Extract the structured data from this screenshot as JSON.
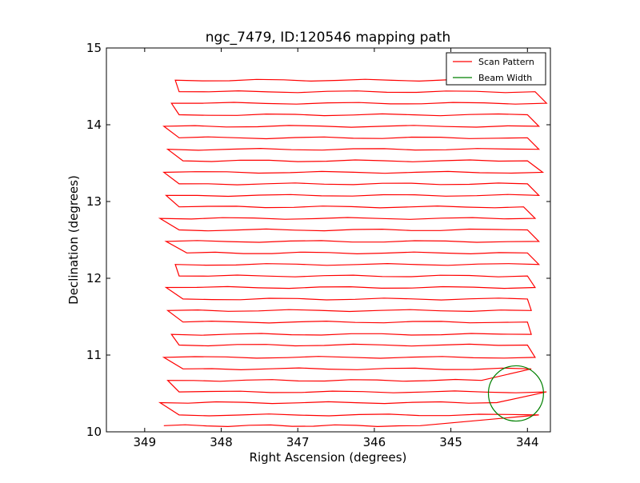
{
  "chart_data": {
    "type": "line",
    "title": "ngc_7479, ID:120546 mapping path",
    "xlabel": "Right Ascension (degrees)",
    "ylabel": "Declination (degrees)",
    "xlim": [
      349.5,
      343.7
    ],
    "ylim": [
      10,
      15
    ],
    "x_inverted": true,
    "xticks": [
      349,
      348,
      347,
      346,
      345,
      344
    ],
    "yticks": [
      10,
      11,
      12,
      13,
      14,
      15
    ],
    "xtick_labels": [
      "349",
      "348",
      "347",
      "346",
      "345",
      "344"
    ],
    "ytick_labels": [
      "10",
      "11",
      "12",
      "13",
      "14",
      "15"
    ],
    "grid": false,
    "legend_position": "top-right",
    "legend": [
      {
        "label": "Scan Pattern",
        "color": "#ff0000"
      },
      {
        "label": "Beam Width",
        "color": "#008000"
      }
    ],
    "series": [
      {
        "name": "Scan Pattern",
        "color": "#ff0000",
        "scan_rows": [
          {
            "dec": 10.08,
            "x_start": 348.75,
            "x_end": 345.4
          },
          {
            "dec": 10.22,
            "x_start": 348.55,
            "x_end": 343.85
          },
          {
            "dec": 10.38,
            "x_start": 348.8,
            "x_end": 344.4
          },
          {
            "dec": 10.52,
            "x_start": 348.55,
            "x_end": 343.75
          },
          {
            "dec": 10.67,
            "x_start": 348.7,
            "x_end": 344.6
          },
          {
            "dec": 10.82,
            "x_start": 348.5,
            "x_end": 343.95
          },
          {
            "dec": 10.97,
            "x_start": 348.75,
            "x_end": 343.9
          },
          {
            "dec": 11.13,
            "x_start": 348.55,
            "x_end": 344.0
          },
          {
            "dec": 11.27,
            "x_start": 348.65,
            "x_end": 343.95
          },
          {
            "dec": 11.43,
            "x_start": 348.5,
            "x_end": 344.0
          },
          {
            "dec": 11.58,
            "x_start": 348.7,
            "x_end": 343.95
          },
          {
            "dec": 11.73,
            "x_start": 348.5,
            "x_end": 344.0
          },
          {
            "dec": 11.88,
            "x_start": 348.72,
            "x_end": 343.9
          },
          {
            "dec": 12.03,
            "x_start": 348.55,
            "x_end": 344.0
          },
          {
            "dec": 12.18,
            "x_start": 348.6,
            "x_end": 343.85
          },
          {
            "dec": 12.33,
            "x_start": 348.45,
            "x_end": 344.0
          },
          {
            "dec": 12.48,
            "x_start": 348.72,
            "x_end": 343.85
          },
          {
            "dec": 12.63,
            "x_start": 348.55,
            "x_end": 344.0
          },
          {
            "dec": 12.78,
            "x_start": 348.8,
            "x_end": 343.9
          },
          {
            "dec": 12.93,
            "x_start": 348.55,
            "x_end": 344.05
          },
          {
            "dec": 13.08,
            "x_start": 348.72,
            "x_end": 343.85
          },
          {
            "dec": 13.23,
            "x_start": 348.55,
            "x_end": 344.0
          },
          {
            "dec": 13.38,
            "x_start": 348.75,
            "x_end": 343.8
          },
          {
            "dec": 13.53,
            "x_start": 348.5,
            "x_end": 344.0
          },
          {
            "dec": 13.68,
            "x_start": 348.7,
            "x_end": 343.85
          },
          {
            "dec": 13.83,
            "x_start": 348.55,
            "x_end": 344.0
          },
          {
            "dec": 13.98,
            "x_start": 348.75,
            "x_end": 343.85
          },
          {
            "dec": 14.13,
            "x_start": 348.55,
            "x_end": 344.0
          },
          {
            "dec": 14.28,
            "x_start": 348.65,
            "x_end": 343.75
          },
          {
            "dec": 14.43,
            "x_start": 348.55,
            "x_end": 343.9
          },
          {
            "dec": 14.58,
            "x_start": 348.6,
            "x_end": 344.35
          }
        ]
      },
      {
        "name": "Beam Width",
        "color": "#008000",
        "shape": "circle",
        "center": [
          344.15,
          10.5
        ],
        "radius_deg": 0.36
      }
    ]
  }
}
